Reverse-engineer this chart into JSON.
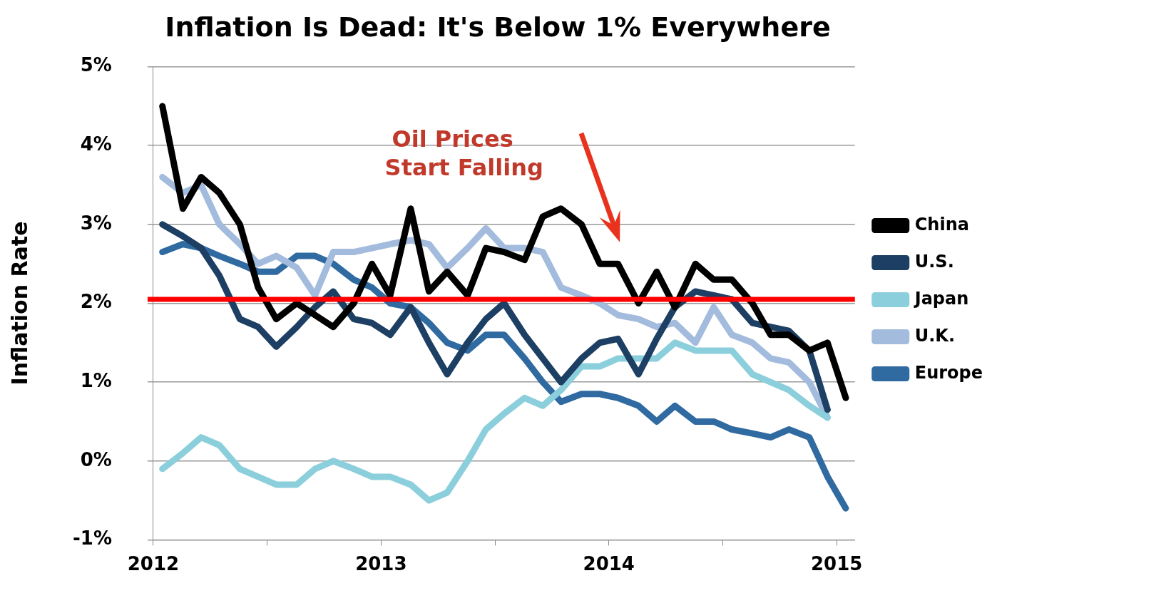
{
  "chart_data": {
    "type": "line",
    "title": "Inflation Is Dead: It's Below 1% Everywhere",
    "ylabel": "Inflation Rate",
    "x": [
      2012.04,
      2012.13,
      2012.21,
      2012.29,
      2012.38,
      2012.46,
      2012.54,
      2012.63,
      2012.71,
      2012.79,
      2012.88,
      2012.96,
      2013.04,
      2013.13,
      2013.21,
      2013.29,
      2013.38,
      2013.46,
      2013.54,
      2013.63,
      2013.71,
      2013.79,
      2013.88,
      2013.96,
      2014.04,
      2014.13,
      2014.21,
      2014.29,
      2014.38,
      2014.46,
      2014.54,
      2014.63,
      2014.71,
      2014.79,
      2014.88,
      2014.96,
      2015.04
    ],
    "series": [
      {
        "name": "China",
        "color": "#000000",
        "values": [
          4.5,
          3.2,
          3.6,
          3.4,
          3.0,
          2.2,
          1.8,
          2.0,
          1.85,
          1.7,
          2.0,
          2.5,
          2.1,
          3.2,
          2.15,
          2.4,
          2.1,
          2.7,
          2.65,
          2.55,
          3.1,
          3.2,
          3.0,
          2.5,
          2.5,
          2.0,
          2.4,
          1.95,
          2.5,
          2.3,
          2.3,
          2.0,
          1.6,
          1.6,
          1.4,
          1.5,
          0.8
        ]
      },
      {
        "name": "U.S.",
        "color": "#1c3f63",
        "values": [
          3.0,
          2.85,
          2.7,
          2.35,
          1.8,
          1.7,
          1.45,
          1.7,
          1.95,
          2.15,
          1.8,
          1.75,
          1.6,
          1.95,
          1.5,
          1.1,
          1.5,
          1.8,
          2.0,
          1.6,
          1.3,
          1.0,
          1.3,
          1.5,
          1.55,
          1.1,
          1.55,
          1.95,
          2.15,
          2.1,
          2.05,
          1.75,
          1.7,
          1.65,
          1.4,
          0.65,
          null
        ]
      },
      {
        "name": "Japan",
        "color": "#8ccfdc",
        "values": [
          -0.1,
          0.1,
          0.3,
          0.2,
          -0.1,
          -0.2,
          -0.3,
          -0.3,
          -0.1,
          0.0,
          -0.1,
          -0.2,
          -0.2,
          -0.3,
          -0.5,
          -0.4,
          0.0,
          0.4,
          0.6,
          0.8,
          0.7,
          0.9,
          1.2,
          1.2,
          1.3,
          1.3,
          1.3,
          1.5,
          1.4,
          1.4,
          1.4,
          1.1,
          1.0,
          0.9,
          0.7,
          0.55,
          null
        ]
      },
      {
        "name": "U.K.",
        "color": "#a3bbdc",
        "values": [
          3.6,
          3.4,
          3.5,
          3.0,
          2.75,
          2.5,
          2.6,
          2.45,
          2.1,
          2.65,
          2.65,
          2.7,
          2.75,
          2.8,
          2.75,
          2.45,
          2.7,
          2.95,
          2.7,
          2.7,
          2.65,
          2.2,
          2.1,
          2.0,
          1.85,
          1.8,
          1.7,
          1.75,
          1.5,
          1.95,
          1.6,
          1.5,
          1.3,
          1.25,
          1.0,
          0.55,
          null
        ]
      },
      {
        "name": "Europe",
        "color": "#2f6aa0",
        "values": [
          2.65,
          2.75,
          2.7,
          2.6,
          2.5,
          2.4,
          2.4,
          2.6,
          2.6,
          2.5,
          2.3,
          2.2,
          2.0,
          1.95,
          1.75,
          1.5,
          1.4,
          1.6,
          1.6,
          1.3,
          1.0,
          0.75,
          0.85,
          0.85,
          0.8,
          0.7,
          0.5,
          0.7,
          0.5,
          0.5,
          0.4,
          0.35,
          0.3,
          0.4,
          0.3,
          -0.2,
          -0.6
        ]
      }
    ],
    "xlim": [
      2012,
      2015.08
    ],
    "xticks": [
      2012,
      {
        "value": 2012.5,
        "label": null
      },
      2013,
      {
        "value": 2013.5,
        "label": null
      },
      2014,
      {
        "value": 2014.5,
        "label": null
      },
      2015
    ],
    "ylim": [
      -1,
      5
    ],
    "yticks": [
      {
        "value": -1,
        "label": "-1%"
      },
      {
        "value": 0,
        "label": "0%"
      },
      {
        "value": 1,
        "label": "1%"
      },
      {
        "value": 2,
        "label": "2%"
      },
      {
        "value": 3,
        "label": "3%"
      },
      {
        "value": 4,
        "label": "4%"
      },
      {
        "value": 5,
        "label": "5%"
      }
    ],
    "ref_lines": [
      {
        "axis": "y",
        "value": 2.05,
        "color": "#ff0000"
      }
    ],
    "annotations": [
      "Oil Prices\nStart Falling"
    ],
    "grid": "y",
    "legend": "right",
    "marker": "none",
    "line_style": "solid"
  }
}
